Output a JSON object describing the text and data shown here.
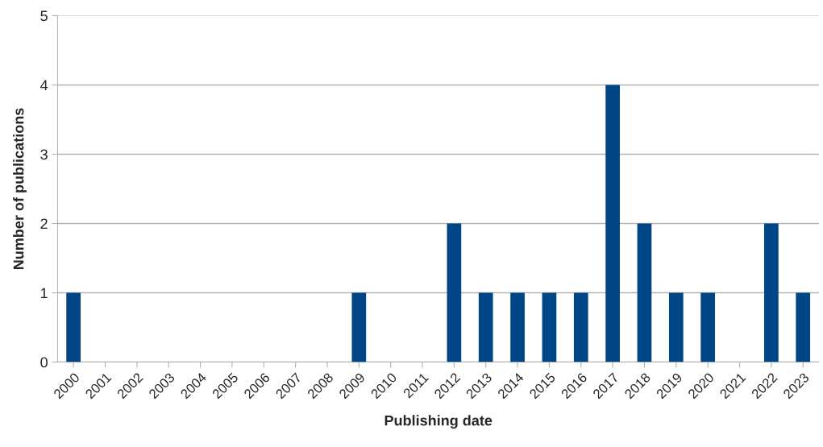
{
  "chart_data": {
    "type": "bar",
    "xlabel": "Publishing date",
    "ylabel": "Number of publications",
    "categories": [
      "2000",
      "2001",
      "2002",
      "2003",
      "2004",
      "2005",
      "2006",
      "2007",
      "2008",
      "2009",
      "2010",
      "2011",
      "2012",
      "2013",
      "2014",
      "2015",
      "2016",
      "2017",
      "2018",
      "2019",
      "2020",
      "2021",
      "2022",
      "2023"
    ],
    "values": [
      1,
      0,
      0,
      0,
      0,
      0,
      0,
      0,
      0,
      1,
      0,
      0,
      2,
      1,
      1,
      1,
      1,
      4,
      2,
      1,
      1,
      0,
      2,
      1
    ],
    "color": "#004586",
    "ylim": [
      0,
      5
    ],
    "yticks": [
      0,
      1,
      2,
      3,
      4,
      5
    ],
    "grid": "y",
    "legend": false
  }
}
